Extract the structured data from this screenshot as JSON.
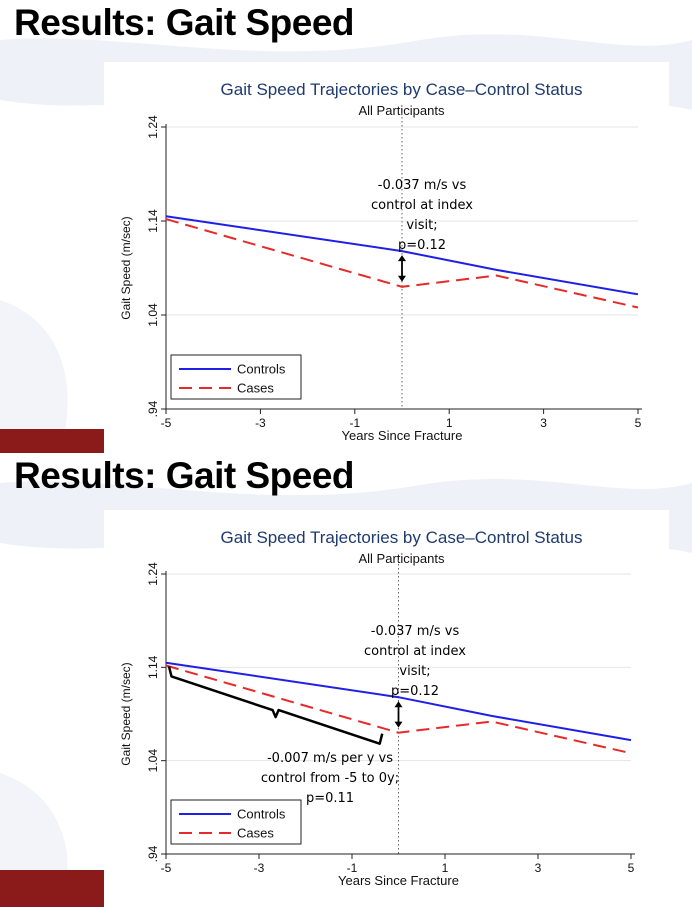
{
  "slides": [
    {
      "title": "Results: Gait Speed",
      "annotation": "-0.037 m/s vs\ncontrol at index\nvisit;\np=0.12"
    },
    {
      "title": "Results: Gait Speed",
      "annotation": "-0.037 m/s vs\ncontrol at index\nvisit;\np=0.12",
      "slope_annotation": "-0.007 m/s per y vs\ncontrol from -5 to 0y;\np=0.11"
    }
  ],
  "colors": {
    "controls": "#1f1fe6",
    "cases": "#e62a2a",
    "title_blue": "#1e3a6e",
    "accent_maroon": "#8b1a1a"
  },
  "chart_data": [
    {
      "type": "line",
      "title": "Gait Speed Trajectories by Case–Control Status",
      "subtitle": "All Participants",
      "xlabel": "Years Since Fracture",
      "ylabel": "Gait Speed (m/sec)",
      "xlim": [
        -5,
        5
      ],
      "ylim": [
        0.94,
        1.24
      ],
      "xticks": [
        "-5",
        "-3",
        "-1",
        "1",
        "3",
        "5"
      ],
      "yticks": [
        ".94",
        "1.04",
        "1.14",
        "1.24"
      ],
      "reference_line_x": 0,
      "grid": "horizontal",
      "legend_position": "bottom-left",
      "series": [
        {
          "name": "Controls",
          "style": "solid",
          "x": [
            -5,
            0,
            2,
            5
          ],
          "y": [
            1.145,
            1.108,
            1.088,
            1.062
          ]
        },
        {
          "name": "Cases",
          "style": "dashed",
          "x": [
            -5,
            0,
            2,
            5
          ],
          "y": [
            1.142,
            1.07,
            1.082,
            1.048
          ]
        }
      ],
      "annotations": [
        {
          "text": "-0.037 m/s vs control at index visit; p=0.12",
          "x": 0,
          "y_from": 1.07,
          "y_to": 1.108
        }
      ]
    },
    {
      "type": "line",
      "title": "Gait Speed Trajectories by Case–Control Status",
      "subtitle": "All Participants",
      "xlabel": "Years Since Fracture",
      "ylabel": "Gait Speed (m/sec)",
      "xlim": [
        -5,
        5
      ],
      "ylim": [
        0.94,
        1.24
      ],
      "xticks": [
        "-5",
        "-3",
        "-1",
        "1",
        "3",
        "5"
      ],
      "yticks": [
        ".94",
        "1.04",
        "1.14",
        "1.24"
      ],
      "reference_line_x": 0,
      "grid": "horizontal",
      "legend_position": "bottom-left",
      "series": [
        {
          "name": "Controls",
          "style": "solid",
          "x": [
            -5,
            0,
            2,
            5
          ],
          "y": [
            1.145,
            1.108,
            1.088,
            1.062
          ]
        },
        {
          "name": "Cases",
          "style": "dashed",
          "x": [
            -5,
            0,
            2,
            5
          ],
          "y": [
            1.142,
            1.07,
            1.082,
            1.048
          ]
        }
      ],
      "annotations": [
        {
          "text": "-0.037 m/s vs control at index visit; p=0.12",
          "x": 0,
          "y_from": 1.07,
          "y_to": 1.108
        },
        {
          "text": "-0.007 m/s per y vs control from -5 to 0y; p=0.11",
          "bracket_x": [
            -5,
            0
          ]
        }
      ]
    }
  ]
}
